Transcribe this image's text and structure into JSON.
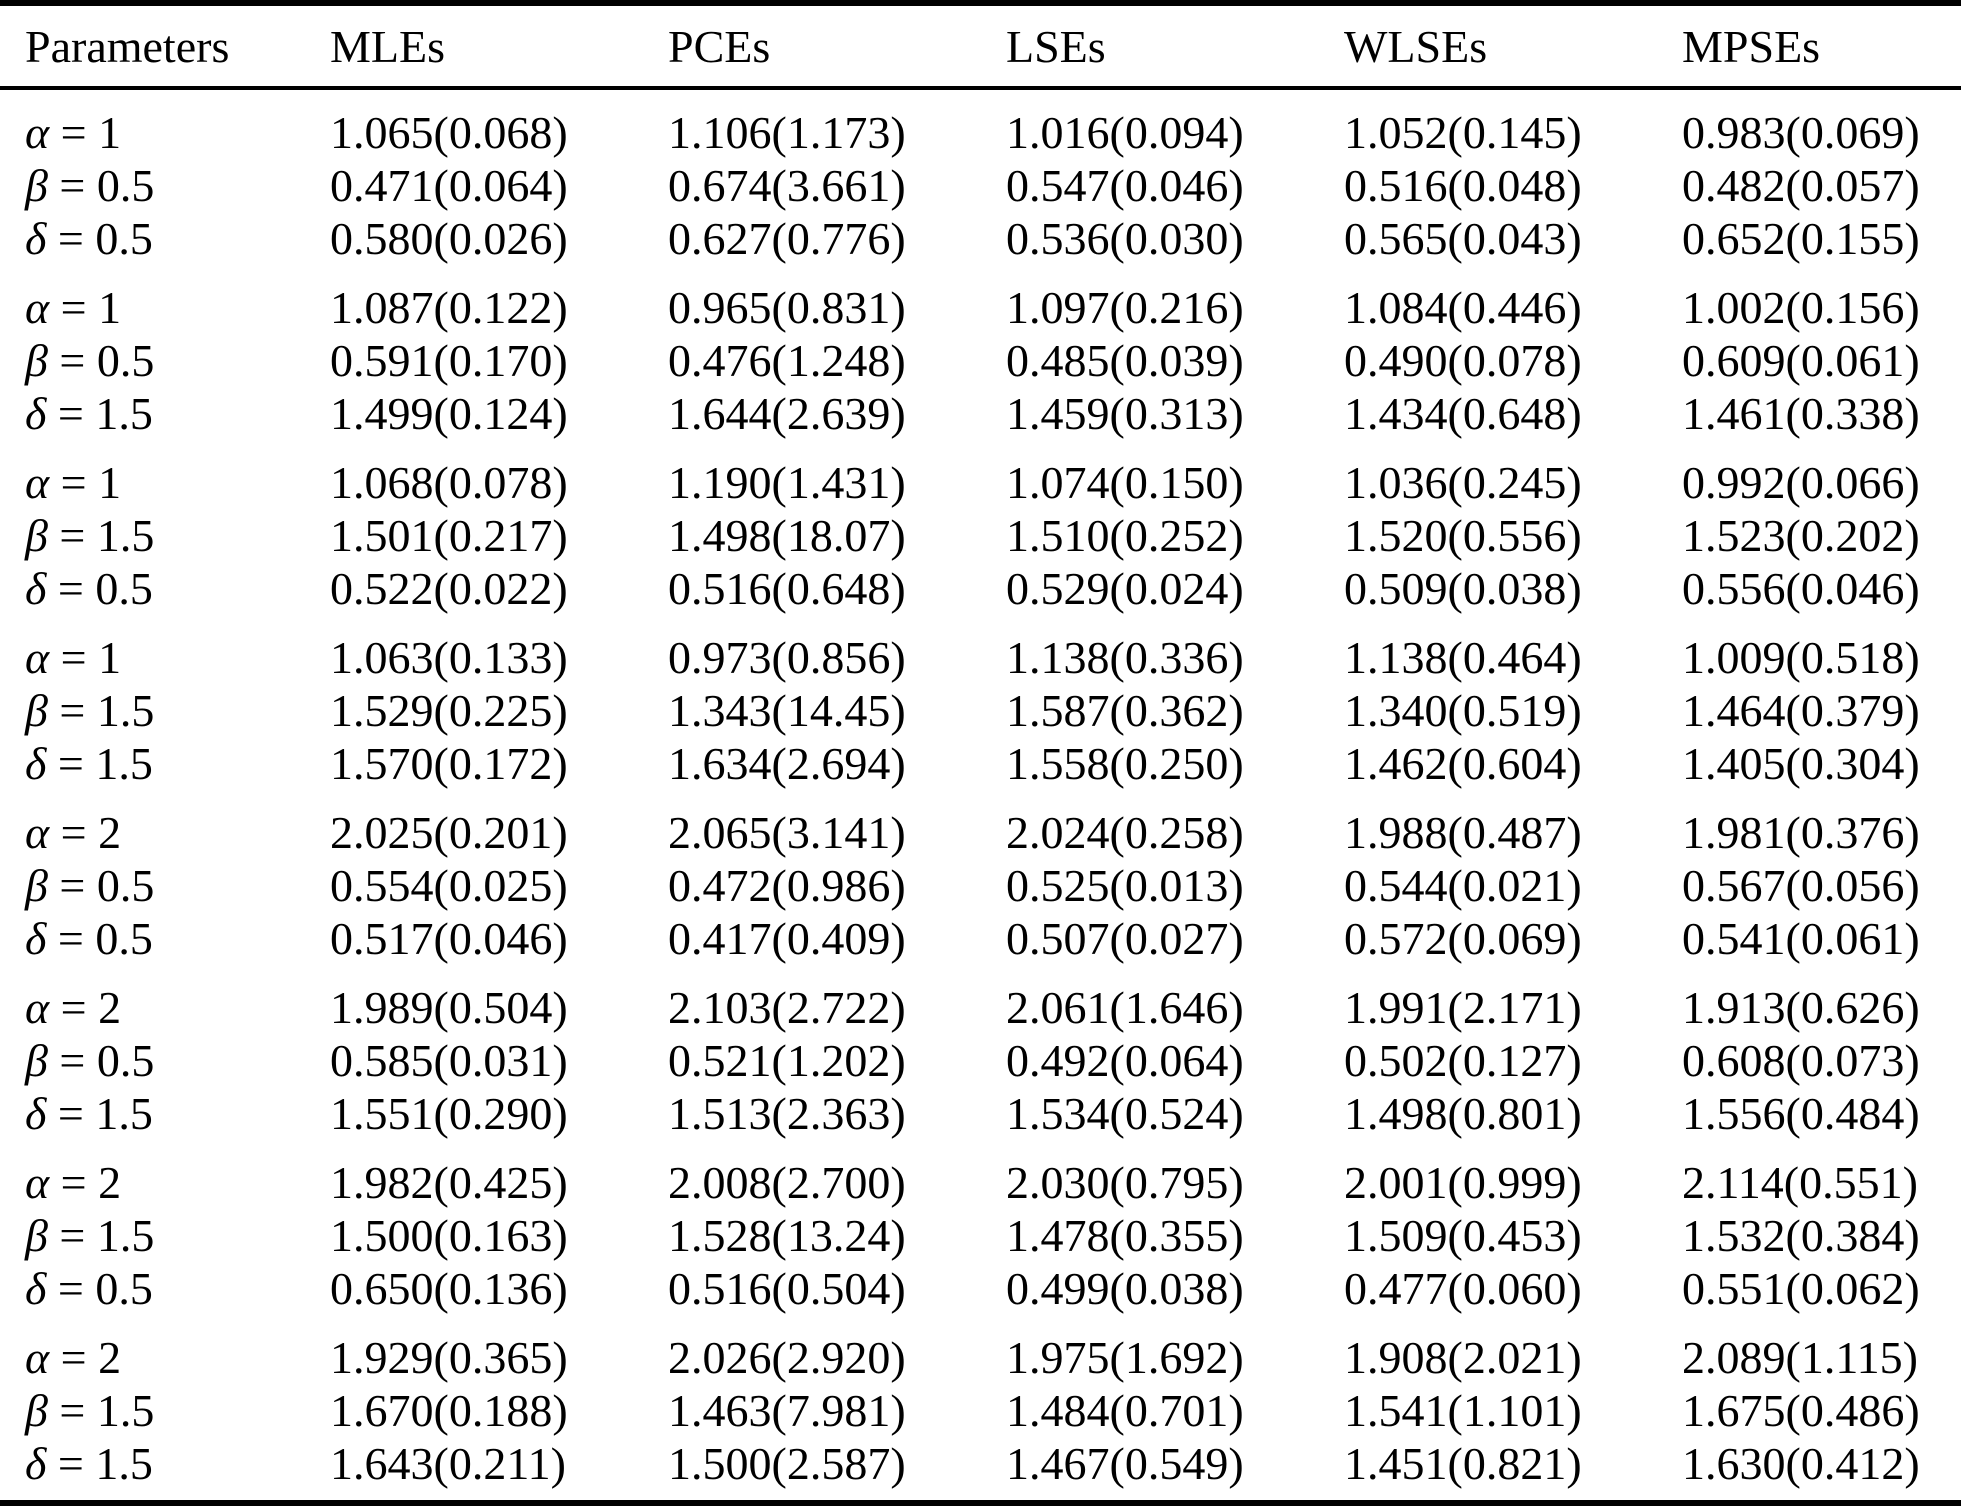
{
  "colors": {
    "background": "#ffffff",
    "text": "#000000",
    "rule": "#000000"
  },
  "table": {
    "columns": [
      "Parameters",
      "MLEs",
      "PCEs",
      "LSEs",
      "WLSEs",
      "MPSEs"
    ],
    "groups": [
      {
        "rows": [
          {
            "symbol": "α",
            "value": "1",
            "cells": [
              "1.065(0.068)",
              "1.106(1.173)",
              "1.016(0.094)",
              "1.052(0.145)",
              "0.983(0.069)"
            ]
          },
          {
            "symbol": "β",
            "value": "0.5",
            "cells": [
              "0.471(0.064)",
              "0.674(3.661)",
              "0.547(0.046)",
              "0.516(0.048)",
              "0.482(0.057)"
            ]
          },
          {
            "symbol": "δ",
            "value": "0.5",
            "cells": [
              "0.580(0.026)",
              "0.627(0.776)",
              "0.536(0.030)",
              "0.565(0.043)",
              "0.652(0.155)"
            ]
          }
        ]
      },
      {
        "rows": [
          {
            "symbol": "α",
            "value": "1",
            "cells": [
              "1.087(0.122)",
              "0.965(0.831)",
              "1.097(0.216)",
              "1.084(0.446)",
              "1.002(0.156)"
            ]
          },
          {
            "symbol": "β",
            "value": "0.5",
            "cells": [
              "0.591(0.170)",
              "0.476(1.248)",
              "0.485(0.039)",
              "0.490(0.078)",
              "0.609(0.061)"
            ]
          },
          {
            "symbol": "δ",
            "value": "1.5",
            "cells": [
              "1.499(0.124)",
              "1.644(2.639)",
              "1.459(0.313)",
              "1.434(0.648)",
              "1.461(0.338)"
            ]
          }
        ]
      },
      {
        "rows": [
          {
            "symbol": "α",
            "value": "1",
            "cells": [
              "1.068(0.078)",
              "1.190(1.431)",
              "1.074(0.150)",
              "1.036(0.245)",
              "0.992(0.066)"
            ]
          },
          {
            "symbol": "β",
            "value": "1.5",
            "cells": [
              "1.501(0.217)",
              "1.498(18.07)",
              "1.510(0.252)",
              "1.520(0.556)",
              "1.523(0.202)"
            ]
          },
          {
            "symbol": "δ",
            "value": "0.5",
            "cells": [
              "0.522(0.022)",
              "0.516(0.648)",
              "0.529(0.024)",
              "0.509(0.038)",
              "0.556(0.046)"
            ]
          }
        ]
      },
      {
        "rows": [
          {
            "symbol": "α",
            "value": "1",
            "cells": [
              "1.063(0.133)",
              "0.973(0.856)",
              "1.138(0.336)",
              "1.138(0.464)",
              "1.009(0.518)"
            ]
          },
          {
            "symbol": "β",
            "value": "1.5",
            "cells": [
              "1.529(0.225)",
              "1.343(14.45)",
              "1.587(0.362)",
              "1.340(0.519)",
              "1.464(0.379)"
            ]
          },
          {
            "symbol": "δ",
            "value": "1.5",
            "cells": [
              "1.570(0.172)",
              "1.634(2.694)",
              "1.558(0.250)",
              "1.462(0.604)",
              "1.405(0.304)"
            ]
          }
        ]
      },
      {
        "rows": [
          {
            "symbol": "α",
            "value": "2",
            "cells": [
              "2.025(0.201)",
              "2.065(3.141)",
              "2.024(0.258)",
              "1.988(0.487)",
              "1.981(0.376)"
            ]
          },
          {
            "symbol": "β",
            "value": "0.5",
            "cells": [
              "0.554(0.025)",
              "0.472(0.986)",
              "0.525(0.013)",
              "0.544(0.021)",
              "0.567(0.056)"
            ]
          },
          {
            "symbol": "δ",
            "value": "0.5",
            "cells": [
              "0.517(0.046)",
              "0.417(0.409)",
              "0.507(0.027)",
              "0.572(0.069)",
              "0.541(0.061)"
            ]
          }
        ]
      },
      {
        "rows": [
          {
            "symbol": "α",
            "value": "2",
            "cells": [
              "1.989(0.504)",
              "2.103(2.722)",
              "2.061(1.646)",
              "1.991(2.171)",
              "1.913(0.626)"
            ]
          },
          {
            "symbol": "β",
            "value": "0.5",
            "cells": [
              "0.585(0.031)",
              "0.521(1.202)",
              "0.492(0.064)",
              "0.502(0.127)",
              "0.608(0.073)"
            ]
          },
          {
            "symbol": "δ",
            "value": "1.5",
            "cells": [
              "1.551(0.290)",
              "1.513(2.363)",
              "1.534(0.524)",
              "1.498(0.801)",
              "1.556(0.484)"
            ]
          }
        ]
      },
      {
        "rows": [
          {
            "symbol": "α",
            "value": "2",
            "cells": [
              "1.982(0.425)",
              "2.008(2.700)",
              "2.030(0.795)",
              "2.001(0.999)",
              "2.114(0.551)"
            ]
          },
          {
            "symbol": "β",
            "value": "1.5",
            "cells": [
              "1.500(0.163)",
              "1.528(13.24)",
              "1.478(0.355)",
              "1.509(0.453)",
              "1.532(0.384)"
            ]
          },
          {
            "symbol": "δ",
            "value": "0.5",
            "cells": [
              "0.650(0.136)",
              "0.516(0.504)",
              "0.499(0.038)",
              "0.477(0.060)",
              "0.551(0.062)"
            ]
          }
        ]
      },
      {
        "rows": [
          {
            "symbol": "α",
            "value": "2",
            "cells": [
              "1.929(0.365)",
              "2.026(2.920)",
              "1.975(1.692)",
              "1.908(2.021)",
              "2.089(1.115)"
            ]
          },
          {
            "symbol": "β",
            "value": "1.5",
            "cells": [
              "1.670(0.188)",
              "1.463(7.981)",
              "1.484(0.701)",
              "1.541(1.101)",
              "1.675(0.486)"
            ]
          },
          {
            "symbol": "δ",
            "value": "1.5",
            "cells": [
              "1.643(0.211)",
              "1.500(2.587)",
              "1.467(0.549)",
              "1.451(0.821)",
              "1.630(0.412)"
            ]
          }
        ]
      }
    ]
  }
}
